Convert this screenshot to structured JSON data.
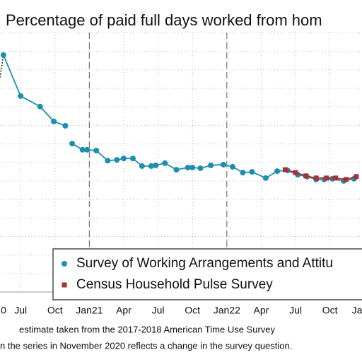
{
  "chart_data": {
    "type": "line",
    "title": "Percentage of paid full days worked from hom",
    "notes": [
      "estimate taken from the 2017-2018 American Time Use Survey",
      "n the series in November 2020 reflects a change in the survey question."
    ],
    "xlim": [
      1.2,
      32.8
    ],
    "ylim": [
      -3.5,
      68
    ],
    "xticks": [
      {
        "value": 0,
        "label": "0"
      },
      {
        "value": 3,
        "label": "Jul"
      },
      {
        "value": 6,
        "label": "Oct"
      },
      {
        "value": 9,
        "label": "Jan21"
      },
      {
        "value": 12,
        "label": "Apr"
      },
      {
        "value": 15,
        "label": "Jul"
      },
      {
        "value": 18,
        "label": "Oct"
      },
      {
        "value": 21,
        "label": "Jan22"
      },
      {
        "value": 24,
        "label": "Apr"
      },
      {
        "value": 27,
        "label": "Jul"
      },
      {
        "value": 30,
        "label": "Oct"
      },
      {
        "value": 33,
        "label": "Ja"
      }
    ],
    "vlines": [
      9,
      21
    ],
    "grid": true,
    "series": [
      {
        "color": "#333333",
        "style": "dotted",
        "x": [
          1.2,
          1.5
        ],
        "values": [
          55.6,
          61.8
        ]
      },
      {
        "name": "Survey of Working Arrangements and Attitu",
        "color": "#1a8fb0",
        "marker": "circle",
        "x": [
          1.5,
          3.0,
          4.7,
          5.9,
          6.9,
          null,
          7.5,
          8.4,
          8.8,
          9.6,
          10.6,
          11.4,
          12.0,
          12.8,
          13.6,
          14.4,
          14.8,
          15.6,
          16.6,
          17.6,
          18.0,
          18.7,
          19.6,
          20.7,
          21.5,
          22.4,
          23.2,
          24.4,
          25.4,
          26.3,
          27.2,
          28.0,
          28.8,
          29.5,
          30.2,
          31.2,
          32.1
        ],
        "values": [
          61.8,
          50.5,
          47.6,
          43.5,
          42.3,
          null,
          37.4,
          35.7,
          35.7,
          35.5,
          32.7,
          32.9,
          33.3,
          33.3,
          31.2,
          31.2,
          31.4,
          32.0,
          30.2,
          30.8,
          30.8,
          30.6,
          31.4,
          31.6,
          31.0,
          29.4,
          29.6,
          27.9,
          29.8,
          30.0,
          28.8,
          28.3,
          27.5,
          27.5,
          27.7,
          27.1,
          27.7
        ]
      },
      {
        "name": "Census Household Pulse Survey",
        "color": "#a83232",
        "marker": "square",
        "x": [
          26.1,
          27.0,
          27.9,
          28.8,
          29.7,
          30.5,
          31.4,
          32.3
        ],
        "values": [
          30.2,
          29.4,
          28.5,
          27.9,
          27.9,
          27.9,
          27.5,
          28.3
        ]
      }
    ]
  }
}
